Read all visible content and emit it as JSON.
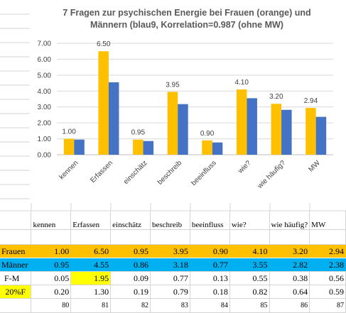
{
  "chart_data": {
    "type": "bar",
    "title_lines": [
      "7 Fragen zur psychischen Energie bei Frauen (orange) und",
      "Männern (blau9, Korrelation=0.987 (ohne MW)"
    ],
    "categories": [
      "kennen",
      "Erfassen",
      "einschätz",
      "beschreib",
      "beeinfluss",
      "wie?",
      "wie häufig?",
      "MW"
    ],
    "series": [
      {
        "name": "Frauen",
        "color": "#ffc000",
        "values": [
          1.0,
          6.5,
          0.95,
          3.95,
          0.9,
          4.1,
          3.2,
          2.94
        ],
        "labels": [
          "1.00",
          "6.50",
          "0.95",
          "3.95",
          "0.90",
          "4.10",
          "3.20",
          "2.94"
        ]
      },
      {
        "name": "Männer",
        "color": "#4472c4",
        "values": [
          0.95,
          4.55,
          0.86,
          3.18,
          0.77,
          3.55,
          2.82,
          2.38
        ]
      }
    ],
    "ylim": [
      0,
      7
    ],
    "yticks": [
      "0.00",
      "1.00",
      "2.00",
      "3.00",
      "4.00",
      "5.00",
      "6.00",
      "7.00"
    ],
    "grid": true,
    "legend": "none"
  },
  "table": {
    "header": [
      "",
      "kennen",
      "Erfassen",
      "einschätz",
      "beschreib",
      "beeinfluss",
      "wie?",
      "wie häufig?",
      "MW"
    ],
    "rows": [
      {
        "key": "frauen",
        "label": "Frauen",
        "cells": [
          "1.00",
          "6.50",
          "0.95",
          "3.95",
          "0.90",
          "4.10",
          "3.20",
          "2.94"
        ]
      },
      {
        "key": "maenner",
        "label": "Männer",
        "cells": [
          "0.95",
          "4.55",
          "0.86",
          "3.18",
          "0.77",
          "3.55",
          "2.82",
          "2.38"
        ]
      },
      {
        "key": "fm",
        "label": "F-M",
        "cells": [
          "0.05",
          "1.95",
          "0.09",
          "0.77",
          "0.13",
          "0.55",
          "0.38",
          "0.56"
        ]
      },
      {
        "key": "pct",
        "label": "20%F",
        "cells": [
          "0.20",
          "1.30",
          "0.19",
          "0.79",
          "0.18",
          "0.82",
          "0.64",
          "0.59"
        ]
      },
      {
        "key": "idx",
        "label": "",
        "cells": [
          "80",
          "81",
          "82",
          "83",
          "84",
          "85",
          "86",
          "87"
        ]
      }
    ],
    "highlight_color": "#ffff00"
  }
}
